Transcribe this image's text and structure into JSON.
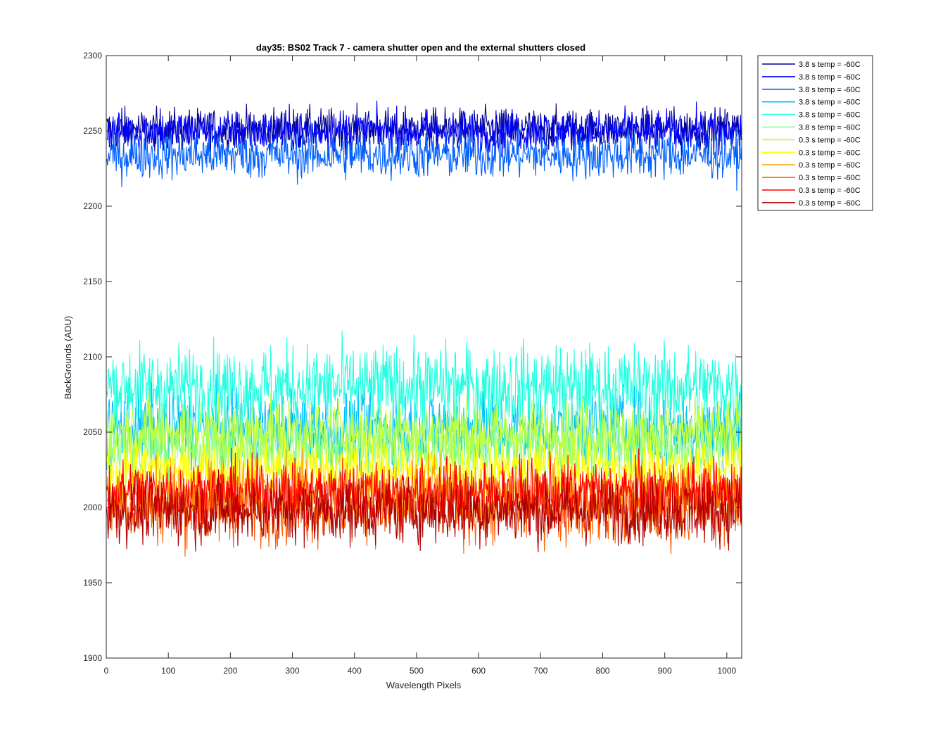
{
  "chart_data": {
    "type": "line",
    "title": "day35: BS02  Track 7 - camera shutter open and the external shutters closed",
    "xlabel": "Wavelength Pixels",
    "ylabel": "BackGrounds (ADU)",
    "xlim": [
      0,
      1024
    ],
    "ylim": [
      1900,
      2300
    ],
    "xticks": [
      0,
      100,
      200,
      300,
      400,
      500,
      600,
      700,
      800,
      900,
      1000
    ],
    "yticks": [
      1900,
      1950,
      2000,
      2050,
      2100,
      2150,
      2200,
      2250,
      2300
    ],
    "grid": false,
    "legend_position": "outside-top-right",
    "x_range": [
      1,
      1024
    ],
    "series": [
      {
        "name": "3.8 s temp = -60C",
        "color": "#00008f",
        "mean": 2251,
        "noise": 7
      },
      {
        "name": "3.8 s temp = -60C",
        "color": "#0000ff",
        "mean": 2250,
        "noise": 7
      },
      {
        "name": "3.8 s temp = -60C",
        "color": "#0060ff",
        "mean": 2234,
        "noise": 8
      },
      {
        "name": "3.8 s temp = -60C",
        "color": "#00bfff",
        "mean": 2052,
        "noise": 13
      },
      {
        "name": "3.8 s temp = -60C",
        "color": "#20ffdf",
        "mean": 2080,
        "noise": 14
      },
      {
        "name": "3.8 s temp = -60C",
        "color": "#7fff7f",
        "mean": 2040,
        "noise": 11
      },
      {
        "name": "0.3 s temp = -60C",
        "color": "#bfff3f",
        "mean": 2050,
        "noise": 11
      },
      {
        "name": "0.3 s temp = -60C",
        "color": "#ffff00",
        "mean": 2026,
        "noise": 10
      },
      {
        "name": "0.3 s temp = -60C",
        "color": "#ffa000",
        "mean": 2010,
        "noise": 10
      },
      {
        "name": "0.3 s temp = -60C",
        "color": "#ff6000",
        "mean": 2000,
        "noise": 12
      },
      {
        "name": "0.3 s temp = -60C",
        "color": "#ff0000",
        "mean": 2010,
        "noise": 11
      },
      {
        "name": "0.3 s temp = -60C",
        "color": "#af0000",
        "mean": 1998,
        "noise": 11
      }
    ]
  }
}
